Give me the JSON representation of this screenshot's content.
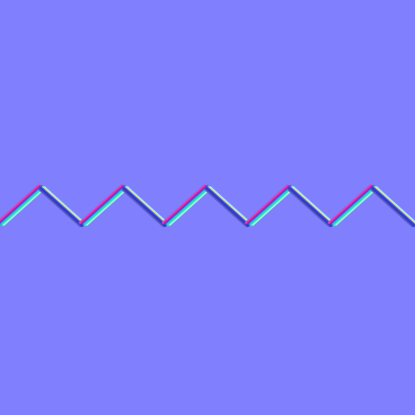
{
  "texture": {
    "background_color": "#8080FF",
    "pattern": "zigzag",
    "peaks": 5,
    "palette": {
      "edge_light": "#9FF0F0",
      "edge_green": "#40E0B0",
      "edge_teal": "#1EC8C8",
      "face_pink": "#E040C0",
      "face_magenta": "#C020A0",
      "face_blue": "#4050E0",
      "face_deep": "#3038C0",
      "face_yellow": "#D8D8A0",
      "shadow_dark": "#5A5AC8"
    }
  }
}
